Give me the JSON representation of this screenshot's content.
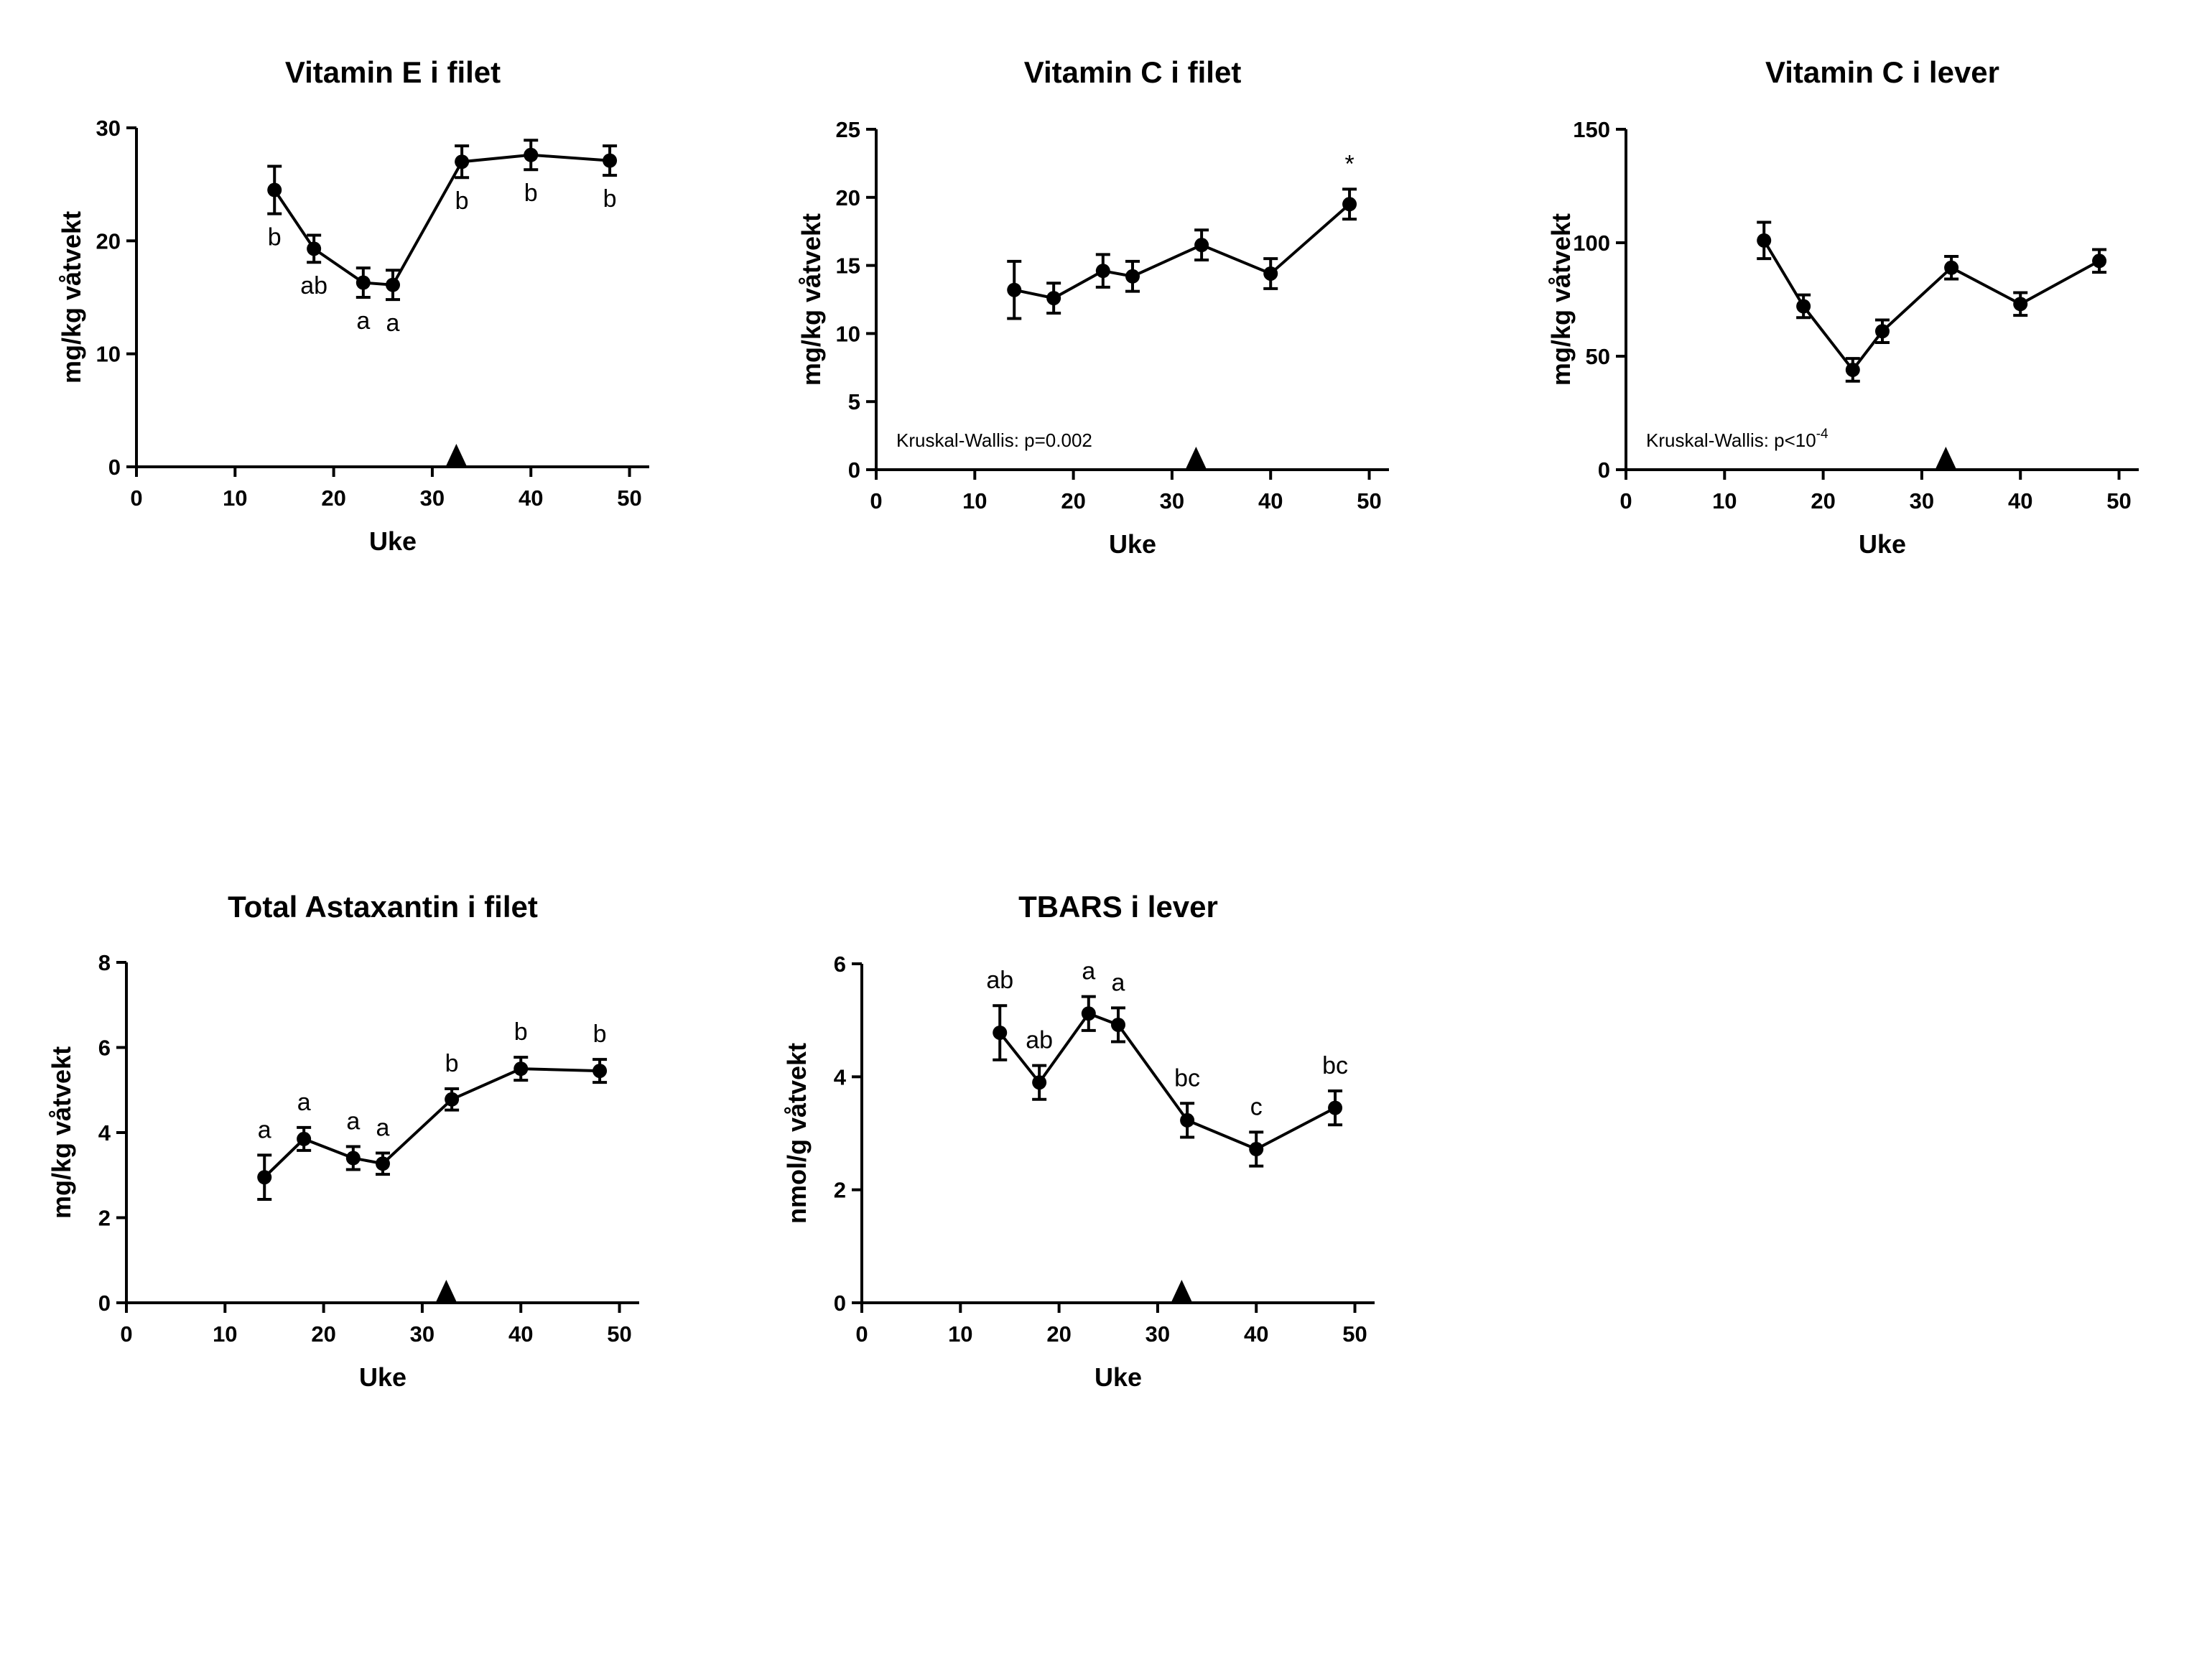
{
  "chart_data": [
    {
      "type": "line",
      "title": "Vitamin E i filet",
      "xlabel": "Uke",
      "ylabel": "mg/kg våtvekt",
      "xlim": [
        0,
        52
      ],
      "ylim": [
        0,
        30
      ],
      "xticks": [
        0,
        10,
        20,
        30,
        40,
        50
      ],
      "yticks": [
        0,
        10,
        20,
        30
      ],
      "x": [
        14,
        18,
        23,
        26,
        33,
        40,
        48
      ],
      "series": [
        {
          "values": [
            24.5,
            19.3,
            16.3,
            16.1,
            27.0,
            27.6,
            27.1
          ],
          "errors": [
            2.1,
            1.2,
            1.3,
            1.3,
            1.4,
            1.3,
            1.3
          ],
          "letters": [
            "b",
            "ab",
            "a",
            "a",
            "b",
            "b",
            "b"
          ],
          "letter_pos": [
            "below",
            "below",
            "below",
            "below",
            "below",
            "below",
            "below"
          ]
        }
      ],
      "marker_x": 32,
      "note": "",
      "grid": false,
      "legend": "none"
    },
    {
      "type": "line",
      "title": "Vitamin C i filet",
      "xlabel": "Uke",
      "ylabel": "mg/kg våtvekt",
      "xlim": [
        0,
        52
      ],
      "ylim": [
        0,
        25
      ],
      "xticks": [
        0,
        10,
        20,
        30,
        40,
        50
      ],
      "yticks": [
        0,
        5,
        10,
        15,
        20,
        25
      ],
      "x": [
        14,
        18,
        23,
        26,
        33,
        40,
        48
      ],
      "series": [
        {
          "values": [
            13.2,
            12.6,
            14.6,
            14.2,
            16.5,
            14.4,
            19.5
          ],
          "errors": [
            2.1,
            1.1,
            1.2,
            1.1,
            1.1,
            1.1,
            1.1
          ],
          "letters": [
            "",
            "",
            "",
            "",
            "",
            "",
            "*"
          ],
          "letter_pos": [
            "above",
            "above",
            "above",
            "above",
            "above",
            "above",
            "above"
          ]
        }
      ],
      "marker_x": 32,
      "note": "Kruskal-Wallis: p=0.002",
      "grid": false,
      "legend": "none"
    },
    {
      "type": "line",
      "title": "Vitamin C i lever",
      "xlabel": "Uke",
      "ylabel": "mg/kg våtvekt",
      "xlim": [
        0,
        52
      ],
      "ylim": [
        0,
        150
      ],
      "xticks": [
        0,
        10,
        20,
        30,
        40,
        50
      ],
      "yticks": [
        0,
        50,
        100,
        150
      ],
      "x": [
        14,
        18,
        23,
        26,
        33,
        40,
        48
      ],
      "series": [
        {
          "values": [
            101,
            72,
            44,
            61,
            89,
            73,
            92
          ],
          "errors": [
            8,
            5,
            5,
            5,
            5,
            5,
            5
          ],
          "letters": [
            "",
            "",
            "",
            "",
            "",
            "",
            ""
          ],
          "letter_pos": [
            "above",
            "above",
            "above",
            "above",
            "above",
            "above",
            "above"
          ]
        }
      ],
      "marker_x": 32,
      "note": "Kruskal-Wallis: p<10",
      "note_sup": "-4",
      "grid": false,
      "legend": "none"
    },
    {
      "type": "line",
      "title": "Total Astaxantin i filet",
      "xlabel": "Uke",
      "ylabel": "mg/kg våtvekt",
      "xlim": [
        0,
        52
      ],
      "ylim": [
        0,
        8
      ],
      "xticks": [
        0,
        10,
        20,
        30,
        40,
        50
      ],
      "yticks": [
        0,
        2,
        4,
        6,
        8
      ],
      "x": [
        14,
        18,
        23,
        26,
        33,
        40,
        48
      ],
      "series": [
        {
          "values": [
            2.95,
            3.85,
            3.4,
            3.27,
            4.78,
            5.5,
            5.45
          ],
          "errors": [
            0.52,
            0.27,
            0.27,
            0.25,
            0.25,
            0.27,
            0.27
          ],
          "letters": [
            "a",
            "a",
            "a",
            "a",
            "b",
            "b",
            "b"
          ],
          "letter_pos": [
            "above",
            "above",
            "above",
            "above",
            "above",
            "above",
            "above"
          ]
        }
      ],
      "marker_x": 32,
      "note": "",
      "grid": false,
      "legend": "none"
    },
    {
      "type": "line",
      "title": "TBARS i lever",
      "xlabel": "Uke",
      "ylabel": "nmol/g våtvekt",
      "xlim": [
        0,
        52
      ],
      "ylim": [
        0,
        6
      ],
      "xticks": [
        0,
        10,
        20,
        30,
        40,
        50
      ],
      "yticks": [
        0,
        2,
        4,
        6
      ],
      "x": [
        14,
        18,
        23,
        26,
        33,
        40,
        48
      ],
      "series": [
        {
          "values": [
            4.78,
            3.9,
            5.12,
            4.92,
            3.23,
            2.72,
            3.45
          ],
          "errors": [
            0.48,
            0.3,
            0.3,
            0.3,
            0.3,
            0.3,
            0.3
          ],
          "letters": [
            "ab",
            "ab",
            "a",
            "a",
            "bc",
            "c",
            "bc"
          ],
          "letter_pos": [
            "above",
            "above",
            "above",
            "above",
            "above",
            "above",
            "above"
          ]
        }
      ],
      "marker_x": 32,
      "note": "",
      "grid": false,
      "legend": "none"
    }
  ]
}
